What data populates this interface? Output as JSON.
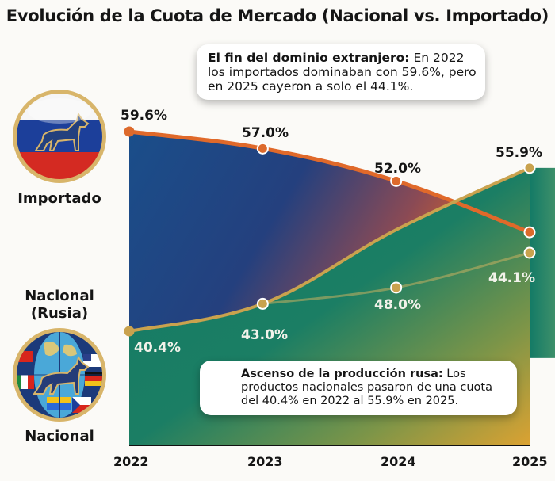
{
  "chart_data": {
    "type": "area",
    "title": "Evolución de la Cuota de Mercado (Nacional vs. Importado)",
    "xlabel": "",
    "ylabel": "",
    "categories": [
      "2022",
      "2023",
      "2024",
      "2025"
    ],
    "series": [
      {
        "name": "Importado",
        "values": [
          59.6,
          57.0,
          52.0,
          44.1
        ],
        "labels": [
          "59.6%",
          "57.0%",
          "52.0%",
          "44.1%"
        ],
        "color": "#e0692a"
      },
      {
        "name": "Nacional (Rusia)",
        "values": [
          40.4,
          43.0,
          48.0,
          55.9
        ],
        "labels": [
          "40.4%",
          "43.0%",
          "48.0%",
          "55.9%"
        ],
        "color": "#c9a24e"
      }
    ],
    "grid": false,
    "legend": "left"
  },
  "title": "Evolución de la Cuota de Mercado (Nacional vs. Importado)",
  "legend": {
    "imported": {
      "label": "Importado",
      "icon": "russian-flag-dog-badge-icon"
    },
    "national_heading": "Nacional\n(Rusia)",
    "national": {
      "label": "Nacional",
      "icon": "globe-flags-dog-badge-icon"
    }
  },
  "callouts": {
    "top": {
      "bold": "El fin del dominio extranjero:",
      "text": " En 2022 los importados dominaban con 59.6%, pero en 2025 cayeron a solo el 44.1%."
    },
    "bottom": {
      "bold": "Ascenso de la producción rusa:",
      "text": " Los productos nacionales pasaron de una cuota del 40.4% en 2022 al 55.9% en 2025."
    }
  },
  "colors": {
    "imported_line": "#e0692a",
    "national_line": "#c9a24e",
    "imported_fill": "#1d4a82",
    "national_fill": "#137a66",
    "accent_orange": "#e8862a"
  }
}
